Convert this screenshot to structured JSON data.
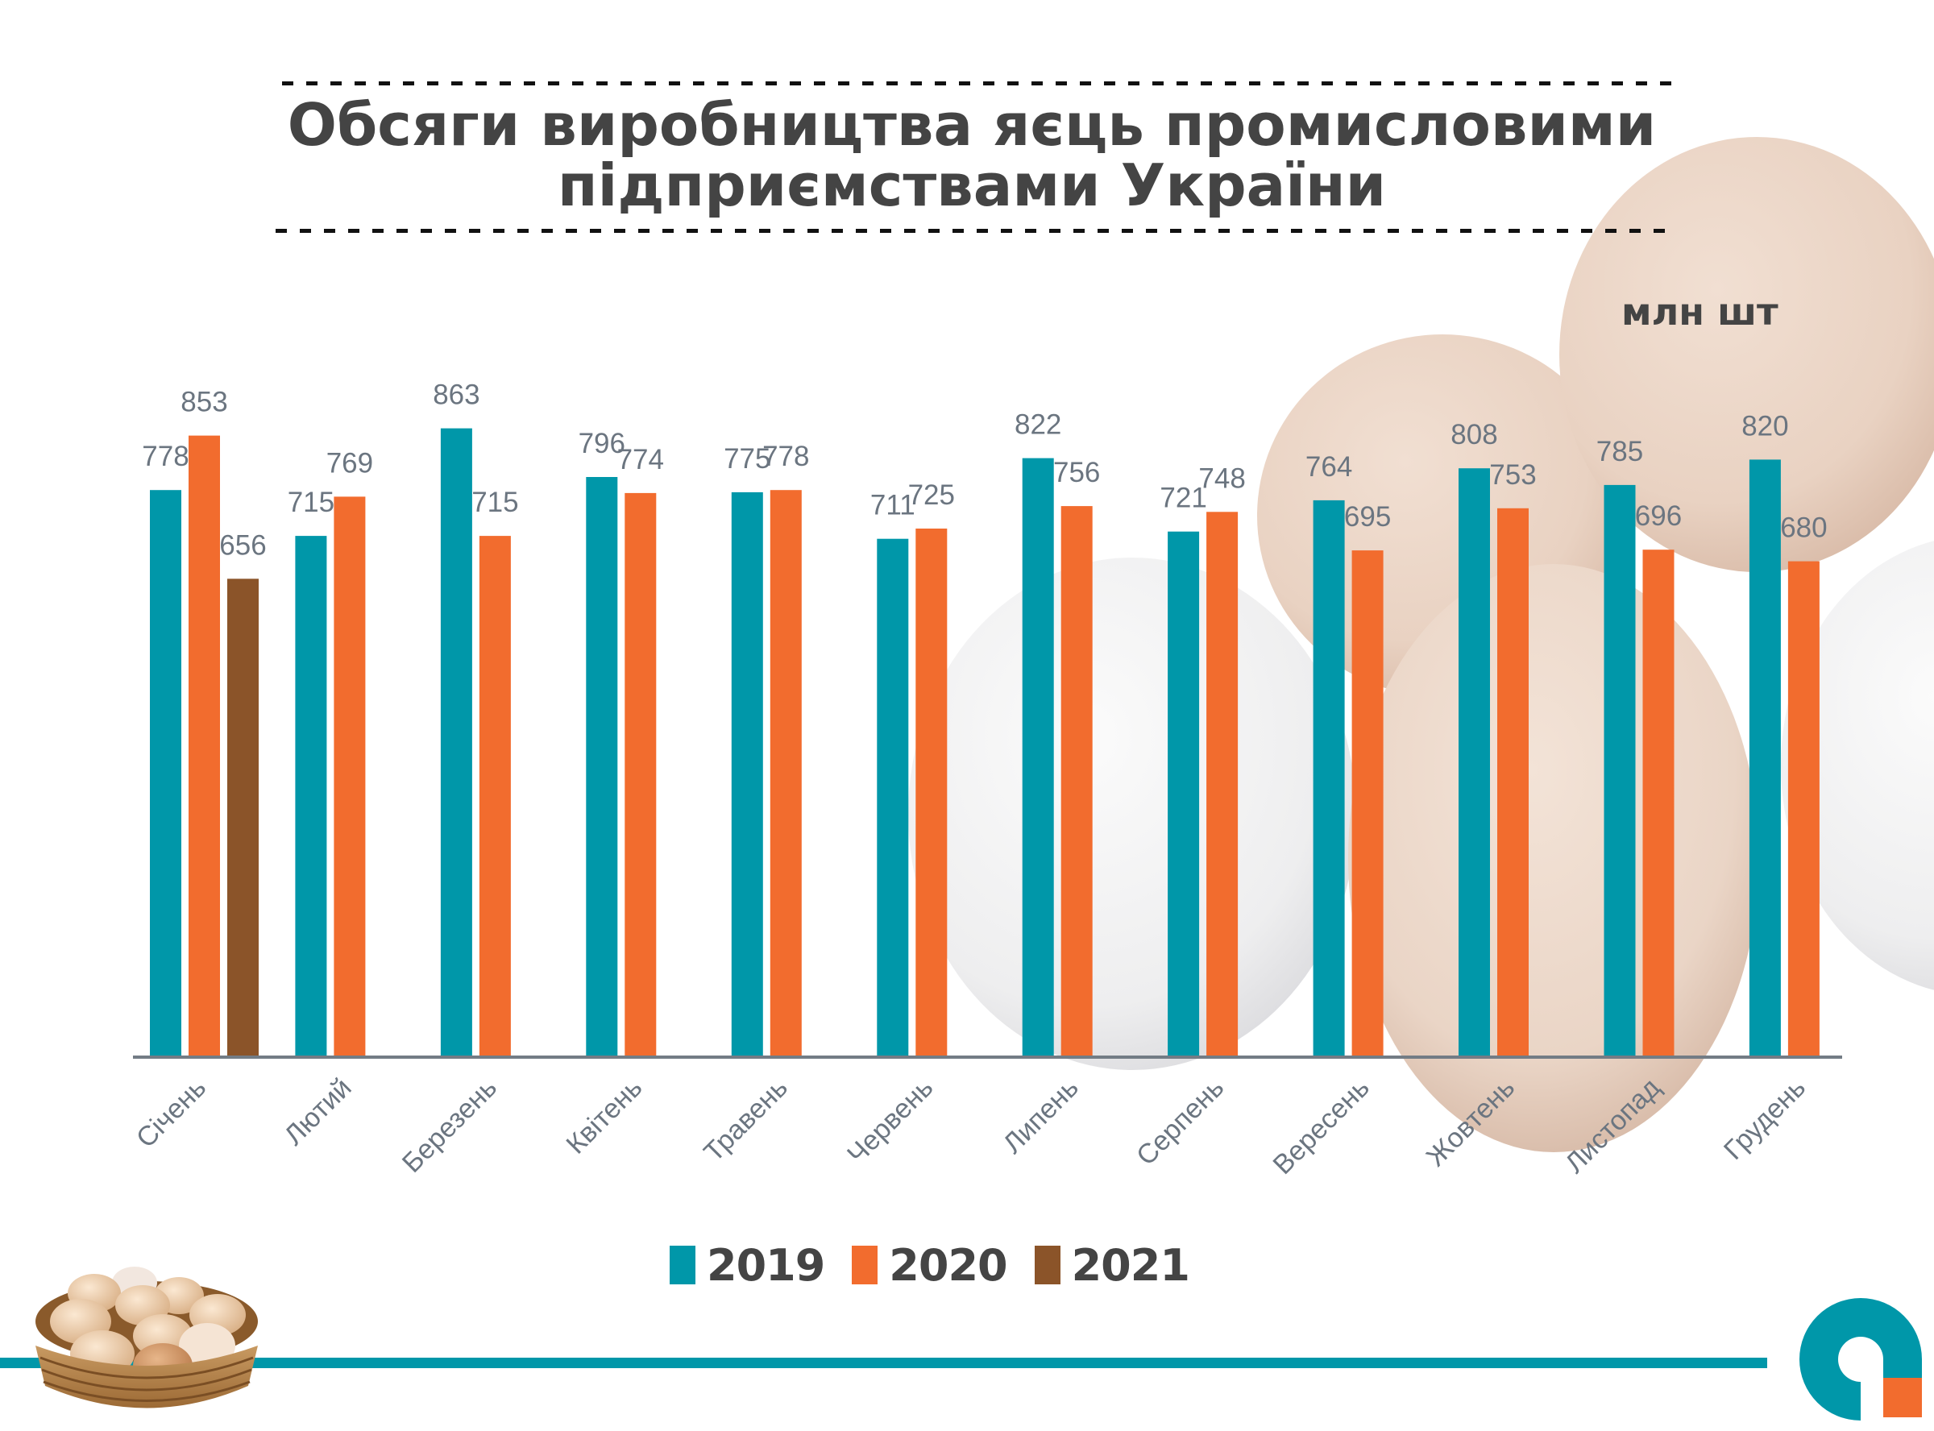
{
  "title": {
    "line1": "Обсяги виробництва яєць промисловими",
    "line2": "підприємствами України"
  },
  "unit_label": "млн шт",
  "colors": {
    "2019": "#0097A9",
    "2020": "#F26C2E",
    "2021": "#8B5429",
    "title": "#444444",
    "labels": "#6B7580",
    "axis": "#737C85",
    "bottom_line": "#0097A9"
  },
  "icons": {
    "basket": "egg-basket-illustration",
    "logo": "brand-logo-teal-orange",
    "background": "eggs-background-illustration"
  },
  "legend": [
    {
      "label": "2019",
      "series": "2019"
    },
    {
      "label": "2020",
      "series": "2020"
    },
    {
      "label": "2021",
      "series": "2021"
    }
  ],
  "chart_data": {
    "type": "bar",
    "title": "Обсяги виробництва яєць промисловими підприємствами України",
    "ylabel": "млн шт",
    "xlabel": "",
    "ylim": [
      0,
      1000
    ],
    "grid": false,
    "legend_position": "bottom",
    "categories": [
      "Січень",
      "Лютий",
      "Березень",
      "Квітень",
      "Травень",
      "Червень",
      "Липень",
      "Серпень",
      "Вересень",
      "Жовтень",
      "Листопад",
      "Грудень"
    ],
    "series": [
      {
        "name": "2019",
        "values": [
          778,
          715,
          863,
          796,
          775,
          711,
          822,
          721,
          764,
          808,
          785,
          820
        ]
      },
      {
        "name": "2020",
        "values": [
          853,
          769,
          715,
          774,
          778,
          725,
          756,
          748,
          695,
          753,
          696,
          680
        ]
      },
      {
        "name": "2021",
        "values": [
          656,
          null,
          null,
          null,
          null,
          null,
          null,
          null,
          null,
          null,
          null,
          null
        ]
      }
    ]
  }
}
